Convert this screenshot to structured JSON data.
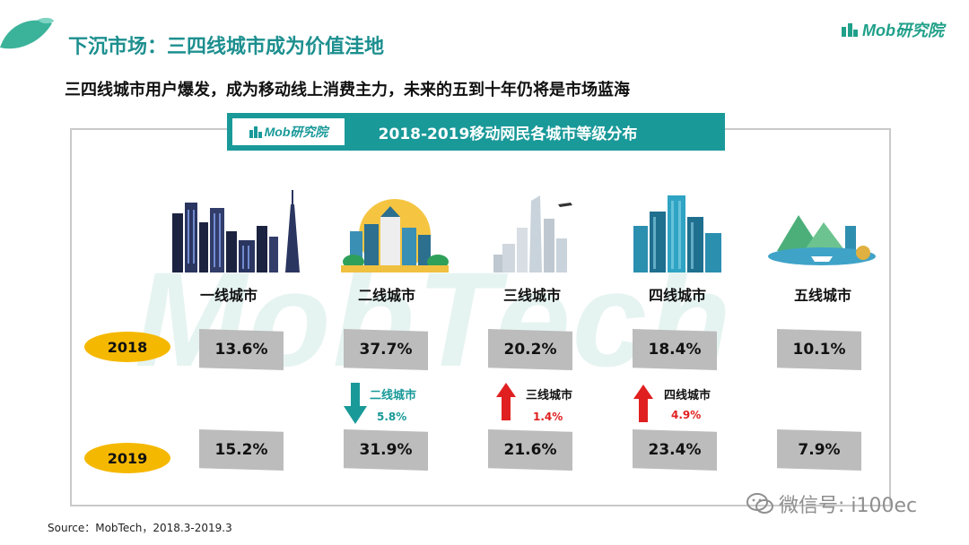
{
  "header": {
    "title": "下沉市场：三四线城市成为价值洼地",
    "brand": "Mob研究院",
    "subtitle": "三四线城市用户爆发，成为移动线上消费主力，未来的五到十年仍将是市场蓝海"
  },
  "watermark": "MobTech",
  "panel": {
    "brand": "Mob研究院",
    "title": "2018-2019移动网民各城市等级分布"
  },
  "years": [
    "2018",
    "2019"
  ],
  "cities": [
    {
      "name": "一线城市",
      "v2018": "13.6%",
      "v2019": "15.2%"
    },
    {
      "name": "二线城市",
      "v2018": "37.7%",
      "v2019": "31.9%"
    },
    {
      "name": "三线城市",
      "v2018": "20.2%",
      "v2019": "21.6%"
    },
    {
      "name": "四线城市",
      "v2018": "18.4%",
      "v2019": "23.4%"
    },
    {
      "name": "五线城市",
      "v2018": "10.1%",
      "v2019": "7.9%"
    }
  ],
  "changes": [
    {
      "name": "二线城市",
      "value": "5.8%",
      "direction": "down",
      "color": "#1a9999"
    },
    {
      "name": "三线城市",
      "value": "1.4%",
      "direction": "up",
      "color": "#e02020"
    },
    {
      "name": "四线城市",
      "value": "4.9%",
      "direction": "up",
      "color": "#e02020"
    }
  ],
  "source": "Source：MobTech，2018.3-2019.3",
  "wechat": "微信号: i100ec",
  "colors": {
    "teal": "#1a9999",
    "red": "#e02020",
    "yellow": "#f5b800",
    "gray": "#bcbcbc"
  }
}
